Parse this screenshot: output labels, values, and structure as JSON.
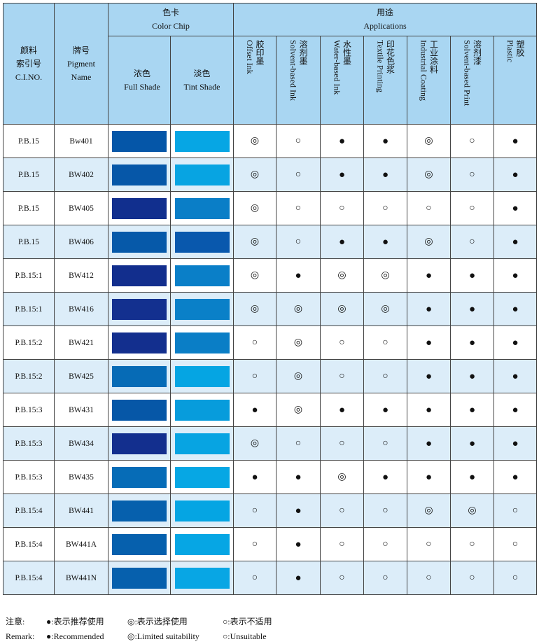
{
  "header": {
    "cino_zh": "颜料\n索引号",
    "cino_en": "C.I.NO.",
    "name_zh": "牌号",
    "name_en": "Pigment\nName",
    "chip_zh": "色卡",
    "chip_en": "Color Chip",
    "full_zh": "浓色",
    "full_en": "Full Shade",
    "tint_zh": "淡色",
    "tint_en": "Tint Shade",
    "app_zh": "用途",
    "app_en": "Applications",
    "applications": [
      {
        "zh": "胶印墨",
        "en": "Offset Ink"
      },
      {
        "zh": "溶剂墨",
        "en": "Solvent-based Ink"
      },
      {
        "zh": "水性墨",
        "en": "Water-based Ink"
      },
      {
        "zh": "印花色浆",
        "en": "Textile Printing"
      },
      {
        "zh": "工业涂料",
        "en": "Industrial Coating"
      },
      {
        "zh": "溶剂漆",
        "en": "Solvent-based Print"
      },
      {
        "zh": "塑胶",
        "en": "Plastic"
      }
    ]
  },
  "symbols": {
    "R": "●",
    "L": "◎",
    "U": "○"
  },
  "rows": [
    {
      "ci": "P.B.15",
      "name": "Bw401",
      "full": "#0556a8",
      "tint": "#06a6e4",
      "apps": [
        "L",
        "U",
        "R",
        "R",
        "L",
        "U",
        "R"
      ]
    },
    {
      "ci": "P.B.15",
      "name": "BW402",
      "full": "#0657a8",
      "tint": "#07a4e2",
      "apps": [
        "L",
        "U",
        "R",
        "R",
        "L",
        "U",
        "R"
      ]
    },
    {
      "ci": "P.B.15",
      "name": "BW405",
      "full": "#112f8e",
      "tint": "#0a7ec7",
      "apps": [
        "L",
        "U",
        "U",
        "U",
        "U",
        "U",
        "R"
      ]
    },
    {
      "ci": "P.B.15",
      "name": "BW406",
      "full": "#0659a9",
      "tint": "#0958ad",
      "apps": [
        "L",
        "U",
        "R",
        "R",
        "L",
        "U",
        "R"
      ]
    },
    {
      "ci": "P.B.15:1",
      "name": "BW412",
      "full": "#122e8d",
      "tint": "#0a7fc8",
      "apps": [
        "L",
        "R",
        "L",
        "L",
        "R",
        "R",
        "R"
      ]
    },
    {
      "ci": "P.B.15:1",
      "name": "BW416",
      "full": "#13308f",
      "tint": "#0a80c8",
      "apps": [
        "L",
        "L",
        "L",
        "L",
        "R",
        "R",
        "R"
      ]
    },
    {
      "ci": "P.B.15:2",
      "name": "BW421",
      "full": "#132f8e",
      "tint": "#0a7ec6",
      "apps": [
        "U",
        "L",
        "U",
        "U",
        "R",
        "R",
        "R"
      ]
    },
    {
      "ci": "P.B.15:2",
      "name": "BW425",
      "full": "#066bb6",
      "tint": "#05a5e3",
      "apps": [
        "U",
        "L",
        "U",
        "U",
        "R",
        "R",
        "R"
      ]
    },
    {
      "ci": "P.B.15:3",
      "name": "BW431",
      "full": "#0657a7",
      "tint": "#079cdc",
      "apps": [
        "R",
        "L",
        "R",
        "R",
        "R",
        "R",
        "R"
      ]
    },
    {
      "ci": "P.B.15:3",
      "name": "BW434",
      "full": "#132f8e",
      "tint": "#07a4e2",
      "apps": [
        "L",
        "U",
        "U",
        "U",
        "R",
        "R",
        "R"
      ]
    },
    {
      "ci": "P.B.15:3",
      "name": "BW435",
      "full": "#066cb7",
      "tint": "#06a7e4",
      "apps": [
        "R",
        "R",
        "L",
        "R",
        "R",
        "R",
        "R"
      ]
    },
    {
      "ci": "P.B.15:4",
      "name": "BW441",
      "full": "#0660ad",
      "tint": "#05a5e3",
      "apps": [
        "U",
        "R",
        "U",
        "U",
        "L",
        "L",
        "U"
      ]
    },
    {
      "ci": "P.B.15:4",
      "name": "BW441A",
      "full": "#0660ad",
      "tint": "#06a6e4",
      "apps": [
        "U",
        "R",
        "U",
        "U",
        "U",
        "U",
        "U"
      ]
    },
    {
      "ci": "P.B.15:4",
      "name": "BW441N",
      "full": "#0660ad",
      "tint": "#08a6e4",
      "apps": [
        "U",
        "R",
        "U",
        "U",
        "U",
        "U",
        "U"
      ]
    }
  ],
  "remark": {
    "label_zh": "注意:",
    "label_en": "Remark:",
    "rec_zh": "●:表示推荐使用",
    "lim_zh": "◎:表示选择使用",
    "uns_zh": "○:表示不适用",
    "rec_en": "●:Recommended",
    "lim_en": "◎:Limited suitability",
    "uns_en": "○:Unsuitable"
  },
  "colors": {
    "header_bg": "#a9d6f2",
    "alt_row_bg": "#dcedf9"
  }
}
